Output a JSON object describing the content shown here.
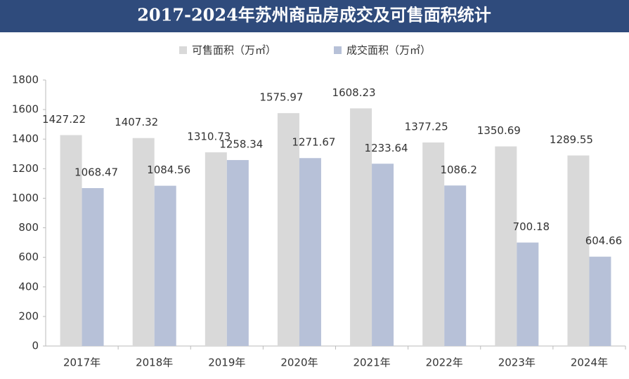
{
  "chart_data": {
    "type": "bar",
    "title": "2017-2024年苏州商品房成交及可售面积统计",
    "categories": [
      "2017年",
      "2018年",
      "2019年",
      "2020年",
      "2021年",
      "2022年",
      "2023年",
      "2024年"
    ],
    "series": [
      {
        "name": "可售面积（万㎡）",
        "color": "#d9d9d9",
        "values": [
          1427.22,
          1407.32,
          1310.73,
          1575.97,
          1608.23,
          1377.25,
          1350.69,
          1289.55
        ]
      },
      {
        "name": "成交面积（万㎡）",
        "color": "#b7c1d8",
        "values": [
          1068.47,
          1084.56,
          1258.34,
          1271.67,
          1233.64,
          1086.2,
          700.18,
          604.66
        ]
      }
    ],
    "ylim": [
      0,
      1800
    ],
    "yticks": [
      0,
      200,
      400,
      600,
      800,
      1000,
      1200,
      1400,
      1600,
      1800
    ],
    "grid": false,
    "legend": "top"
  }
}
